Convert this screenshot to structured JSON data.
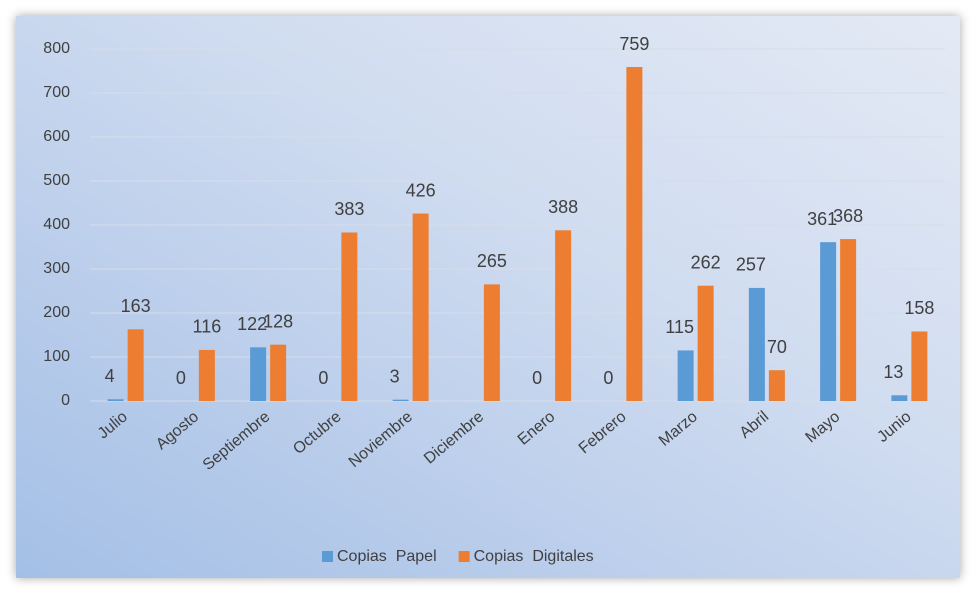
{
  "chart_data": {
    "type": "bar",
    "categories": [
      "Julio",
      "Agosto",
      "Septiembre",
      "Octubre",
      "Noviembre",
      "Diciembre",
      "Enero",
      "Febrero",
      "Marzo",
      "Abril",
      "Mayo",
      "Junio"
    ],
    "series": [
      {
        "name": "Copias  Papel",
        "color": "#5b9bd5",
        "values": [
          4,
          0,
          122,
          0,
          3,
          null,
          0,
          0,
          115,
          257,
          361,
          13
        ]
      },
      {
        "name": "Copias  Digitales",
        "color": "#ed7d31",
        "values": [
          163,
          116,
          128,
          383,
          426,
          265,
          388,
          759,
          262,
          70,
          368,
          158
        ]
      }
    ],
    "ylim": [
      0,
      800
    ],
    "yticks": [
      0,
      100,
      200,
      300,
      400,
      500,
      600,
      700,
      800
    ],
    "grid": true,
    "legend": "bottom"
  }
}
